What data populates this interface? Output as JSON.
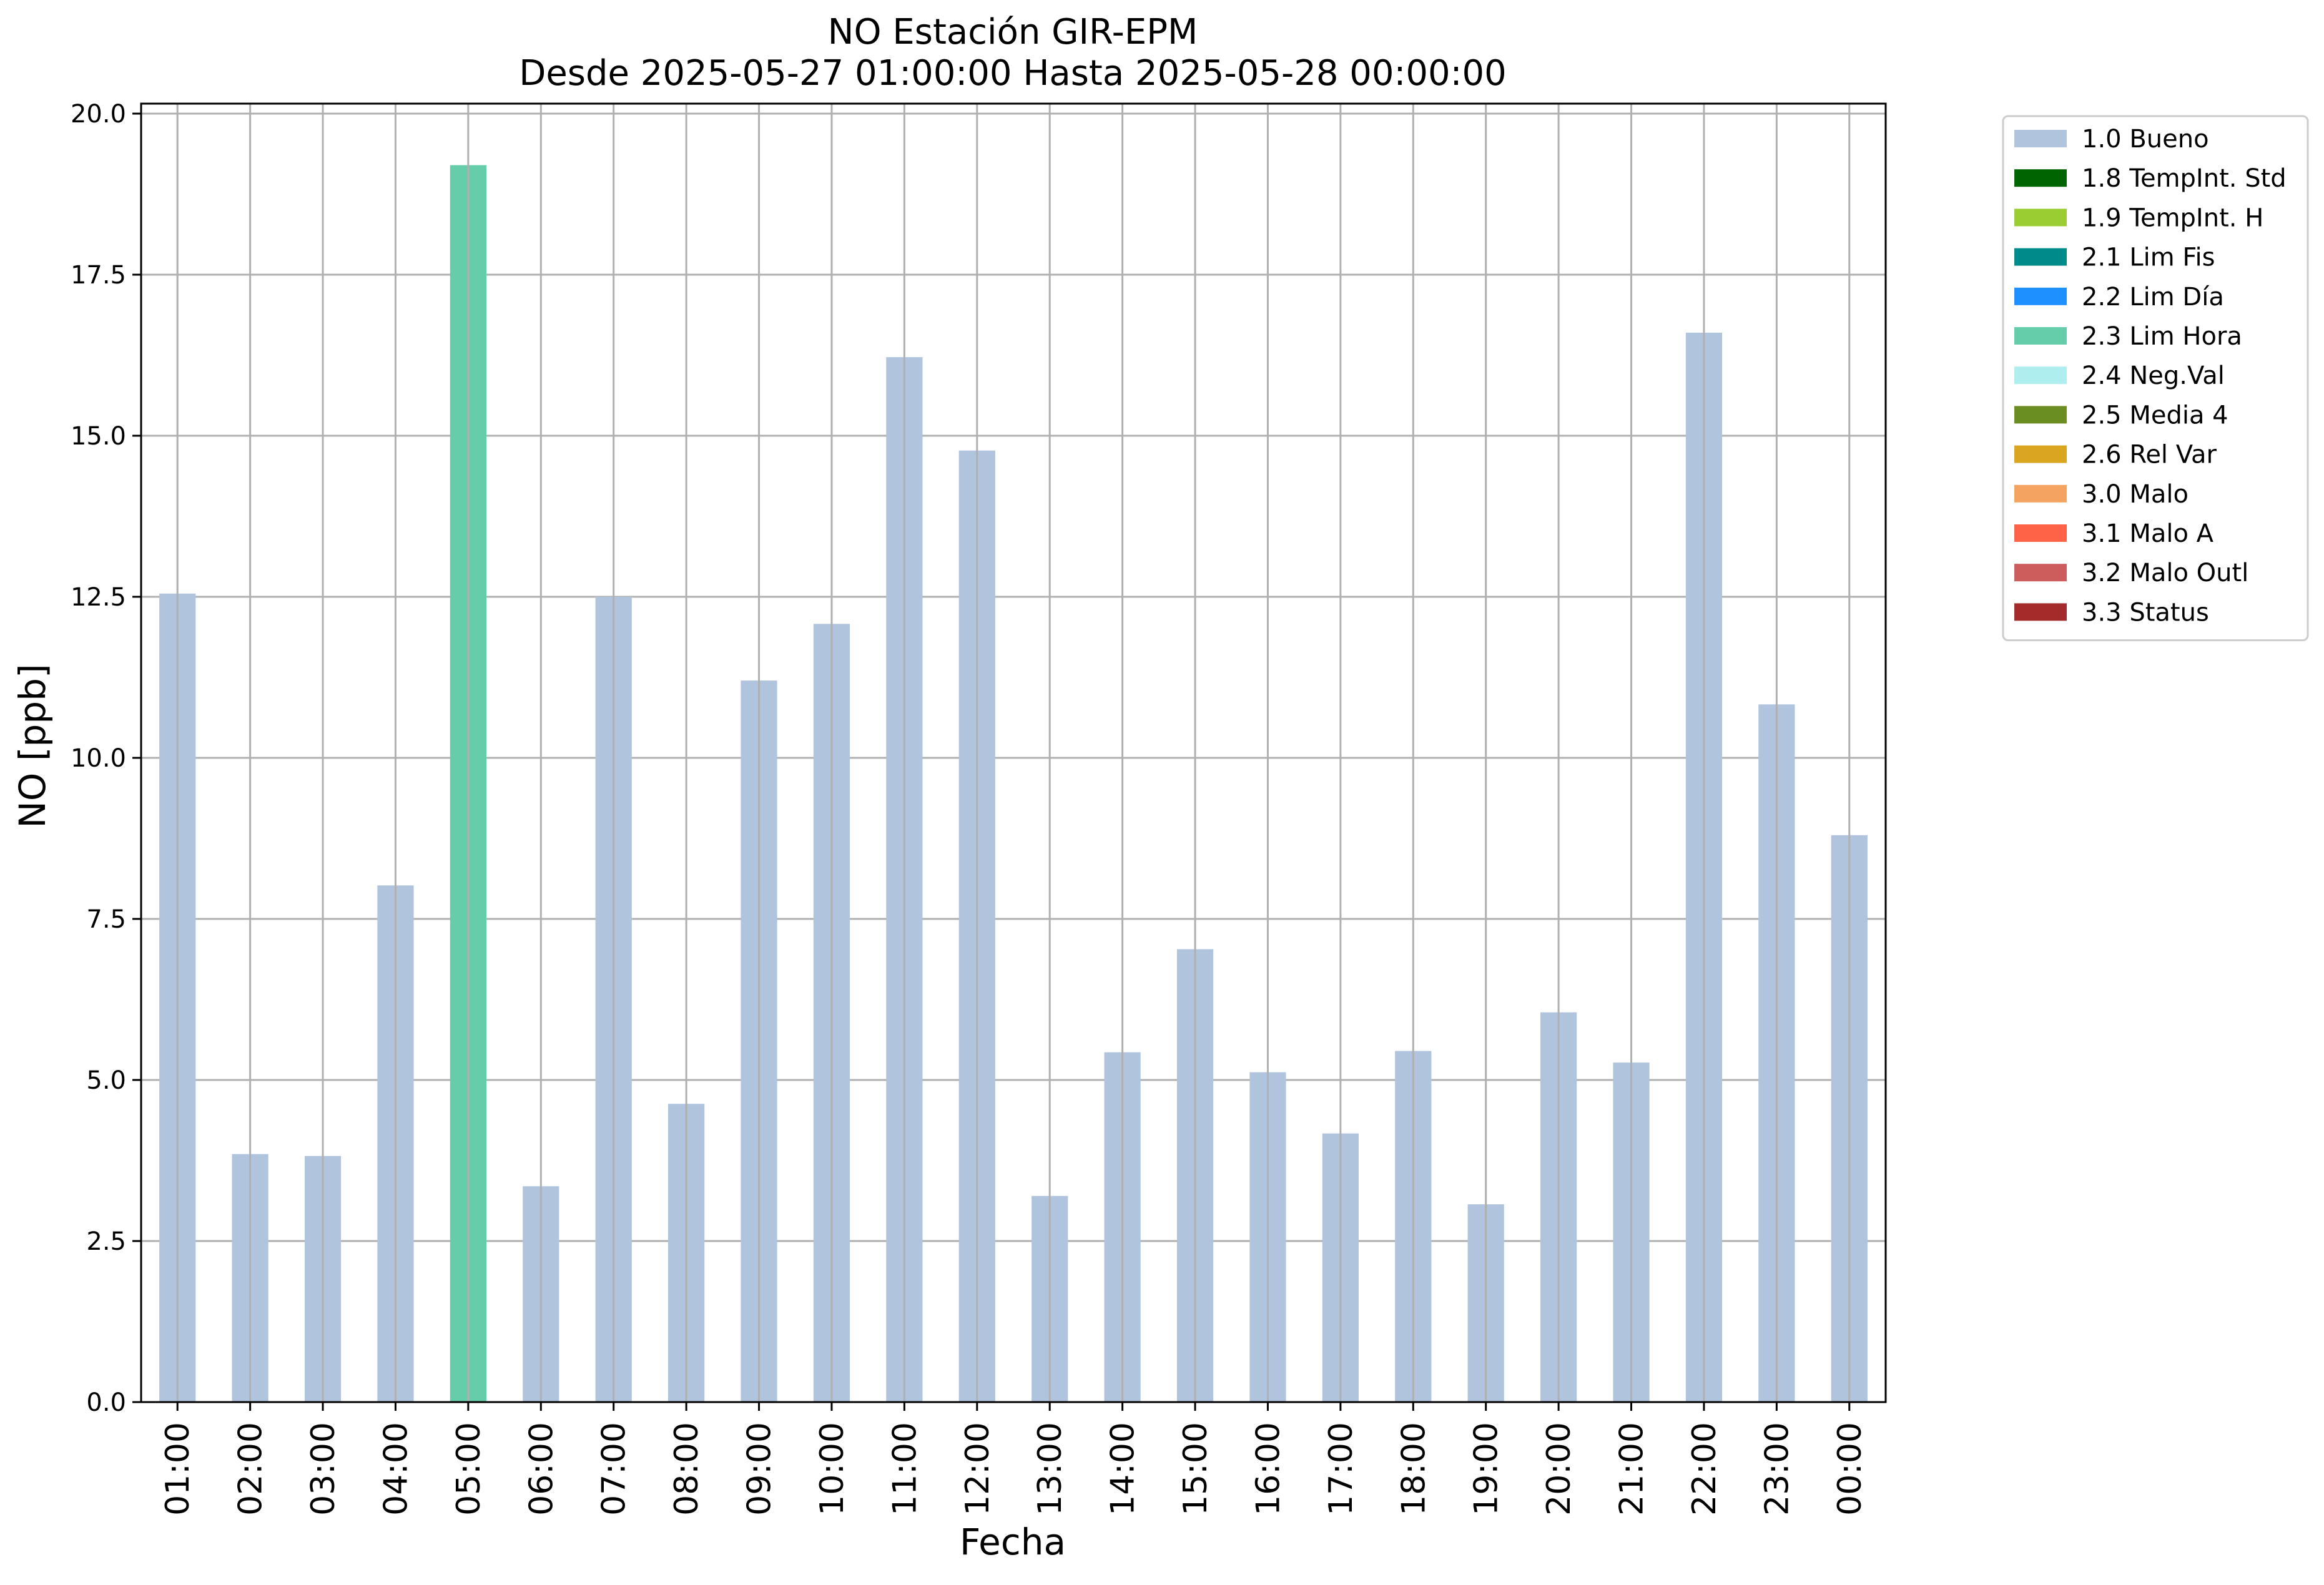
{
  "chart_data": {
    "type": "bar",
    "title": "NO Estación GIR-EPM",
    "subtitle": "Desde 2025-05-27 01:00:00 Hasta 2025-05-28 00:00:00",
    "xlabel": "Fecha",
    "ylabel": "NO [ppb]",
    "ylim": [
      0,
      20
    ],
    "yticks": [
      "0.0",
      "2.5",
      "5.0",
      "7.5",
      "10.0",
      "12.5",
      "15.0",
      "17.5",
      "20.0"
    ],
    "grid": true,
    "legend_position": "outside right, top",
    "categories": [
      "01:00",
      "02:00",
      "03:00",
      "04:00",
      "05:00",
      "06:00",
      "07:00",
      "08:00",
      "09:00",
      "10:00",
      "11:00",
      "12:00",
      "13:00",
      "14:00",
      "15:00",
      "16:00",
      "17:00",
      "18:00",
      "19:00",
      "20:00",
      "21:00",
      "22:00",
      "23:00",
      "00:00"
    ],
    "values": [
      12.55,
      3.85,
      3.82,
      8.02,
      19.2,
      3.35,
      12.5,
      4.63,
      11.2,
      12.08,
      16.22,
      14.77,
      3.2,
      5.43,
      7.03,
      5.12,
      4.17,
      5.45,
      3.07,
      6.05,
      5.27,
      16.6,
      10.83,
      8.8
    ],
    "flags": [
      "1.0 Bueno",
      "1.0 Bueno",
      "1.0 Bueno",
      "1.0 Bueno",
      "2.3 Lim Hora",
      "1.0 Bueno",
      "1.0 Bueno",
      "1.0 Bueno",
      "1.0 Bueno",
      "1.0 Bueno",
      "1.0 Bueno",
      "1.0 Bueno",
      "1.0 Bueno",
      "1.0 Bueno",
      "1.0 Bueno",
      "1.0 Bueno",
      "1.0 Bueno",
      "1.0 Bueno",
      "1.0 Bueno",
      "1.0 Bueno",
      "1.0 Bueno",
      "1.0 Bueno",
      "1.0 Bueno",
      "1.0 Bueno"
    ],
    "legend": [
      {
        "label": "1.0 Bueno",
        "color": "#b0c4de"
      },
      {
        "label": "1.8 TempInt. Std",
        "color": "#006400"
      },
      {
        "label": "1.9 TempInt. H",
        "color": "#9acd32"
      },
      {
        "label": "2.1 Lim Fis",
        "color": "#008b8b"
      },
      {
        "label": "2.2 Lim Día",
        "color": "#1e90ff"
      },
      {
        "label": "2.3 Lim Hora",
        "color": "#66cdaa"
      },
      {
        "label": "2.4 Neg.Val",
        "color": "#afeeee"
      },
      {
        "label": "2.5 Media 4",
        "color": "#6b8e23"
      },
      {
        "label": "2.6 Rel Var",
        "color": "#daa520"
      },
      {
        "label": "3.0 Malo",
        "color": "#f4a460"
      },
      {
        "label": "3.1 Malo A",
        "color": "#ff6347"
      },
      {
        "label": "3.2 Malo Outl",
        "color": "#cd5c5c"
      },
      {
        "label": "3.3 Status",
        "color": "#a52a2a"
      }
    ]
  }
}
